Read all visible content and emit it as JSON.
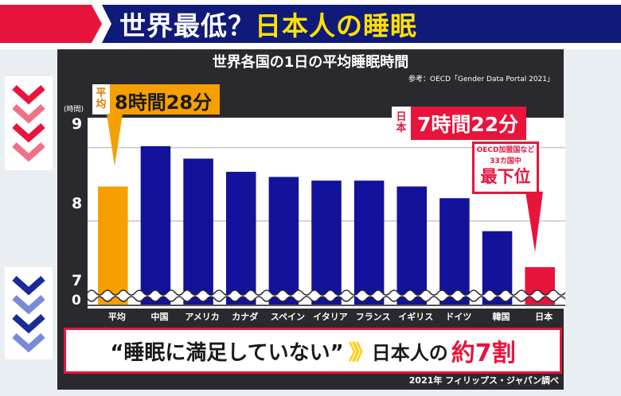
{
  "header": {
    "title_white": "世界最低？",
    "title_yellow": "日本人の睡眠"
  },
  "chart_data": {
    "type": "bar",
    "title": "世界各国の1日の平均睡眠時間",
    "source": "参考：OECD「Gender Data Portal 2021」",
    "ylabel": "(時間)",
    "yticks": [
      "9",
      "8",
      "7",
      "0"
    ],
    "ylim": [
      7,
      9.3
    ],
    "axis_break": true,
    "categories": [
      "平均",
      "中国",
      "アメリカ",
      "カナダ",
      "スペイン",
      "イタリア",
      "フランス",
      "イギリス",
      "ドイツ",
      "韓国",
      "日本"
    ],
    "values": [
      8.47,
      9.02,
      8.85,
      8.67,
      8.6,
      8.55,
      8.55,
      8.47,
      8.31,
      7.86,
      7.37
    ],
    "colors": [
      "#f5a000",
      "#12129a",
      "#12129a",
      "#12129a",
      "#12129a",
      "#12129a",
      "#12129a",
      "#12129a",
      "#12129a",
      "#12129a",
      "#e8143c"
    ],
    "annotations": {
      "average_tag": "平均",
      "average_value": "8時間28分",
      "japan_tag": "日本",
      "japan_value": "7時間22分",
      "rank_note_line1": "OECD加盟国など",
      "rank_note_line2": "33カ国中",
      "rank_label": "最下位"
    }
  },
  "banner": {
    "quote": "“睡眠に満足していない”",
    "arrows": "》》",
    "subject": "日本人の",
    "amount": "約7割"
  },
  "footer": "2021年 フィリップス・ジャパン調べ",
  "colors": {
    "navy": "#101a78",
    "red": "#e8143c",
    "orange": "#f5a000",
    "bar_blue": "#12129a",
    "yellow": "#ffe100"
  }
}
